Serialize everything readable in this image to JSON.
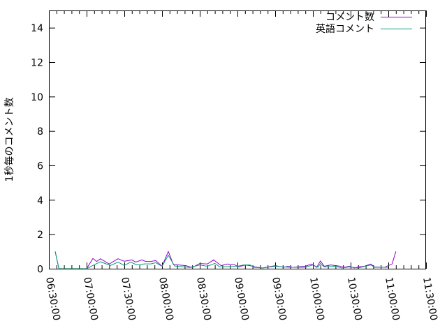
{
  "chart_data": {
    "type": "line",
    "title": "",
    "xlabel": "",
    "ylabel": "1秒毎のコメント数",
    "xlim": [
      "06:30:00",
      "11:30:00"
    ],
    "ylim": [
      0,
      15
    ],
    "xticks": [
      "06:30:00",
      "07:00:00",
      "07:30:00",
      "08:00:00",
      "08:30:00",
      "09:00:00",
      "09:30:00",
      "10:00:00",
      "10:30:00",
      "11:00:00",
      "11:30:00"
    ],
    "yticks": [
      0,
      2,
      4,
      6,
      8,
      10,
      12,
      14
    ],
    "legend_position": "top-right",
    "series": [
      {
        "name": "コメント数",
        "color": "#9400d3",
        "points": [
          [
            "06:35",
            1.0
          ],
          [
            "06:38",
            0
          ],
          [
            "07:00",
            0
          ],
          [
            "07:05",
            0.59
          ],
          [
            "07:08",
            0.42
          ],
          [
            "07:11",
            0.58
          ],
          [
            "07:18",
            0.27
          ],
          [
            "07:25",
            0.58
          ],
          [
            "07:30",
            0.43
          ],
          [
            "07:36",
            0.51
          ],
          [
            "07:39",
            0.38
          ],
          [
            "07:44",
            0.51
          ],
          [
            "07:47",
            0.42
          ],
          [
            "07:51",
            0.42
          ],
          [
            "07:55",
            0.47
          ],
          [
            "08:00",
            0.14
          ],
          [
            "08:05",
            1.0
          ],
          [
            "08:09",
            0.24
          ],
          [
            "08:13",
            0.22
          ],
          [
            "08:19",
            0.18
          ],
          [
            "08:24",
            0.07
          ],
          [
            "08:30",
            0.3
          ],
          [
            "08:36",
            0.27
          ],
          [
            "08:41",
            0.51
          ],
          [
            "08:47",
            0.18
          ],
          [
            "08:52",
            0.27
          ],
          [
            "08:58",
            0.22
          ],
          [
            "09:01",
            0.1
          ],
          [
            "09:06",
            0.22
          ],
          [
            "09:10",
            0.18
          ],
          [
            "09:14",
            0.1
          ],
          [
            "09:20",
            0.04
          ],
          [
            "09:30",
            0.18
          ],
          [
            "09:37",
            0.08
          ],
          [
            "09:40",
            0.14
          ],
          [
            "09:44",
            0.08
          ],
          [
            "09:54",
            0.14
          ],
          [
            "09:59",
            0.27
          ],
          [
            "10:03",
            0.08
          ],
          [
            "10:06",
            0.45
          ],
          [
            "10:09",
            0.14
          ],
          [
            "10:14",
            0.22
          ],
          [
            "10:21",
            0.15
          ],
          [
            "10:25",
            0.08
          ],
          [
            "10:29",
            0.14
          ],
          [
            "10:33",
            0.04
          ],
          [
            "10:36",
            0.1
          ],
          [
            "10:41",
            0.14
          ],
          [
            "10:46",
            0.27
          ],
          [
            "10:49",
            0.1
          ],
          [
            "10:57",
            0.08
          ],
          [
            "11:00",
            0.18
          ],
          [
            "11:03",
            0.27
          ],
          [
            "11:06",
            1.0
          ]
        ]
      },
      {
        "name": "英語コメント",
        "color": "#009e73",
        "points": [
          [
            "06:35",
            1.0
          ],
          [
            "06:38",
            0
          ],
          [
            "07:00",
            0
          ],
          [
            "07:05",
            0.19
          ],
          [
            "07:11",
            0.4
          ],
          [
            "07:19",
            0.19
          ],
          [
            "07:25",
            0.38
          ],
          [
            "07:30",
            0.19
          ],
          [
            "07:35",
            0.38
          ],
          [
            "07:40",
            0.22
          ],
          [
            "07:46",
            0.28
          ],
          [
            "07:51",
            0.28
          ],
          [
            "07:55",
            0.35
          ],
          [
            "08:00",
            0.14
          ],
          [
            "08:05",
            0.78
          ],
          [
            "08:10",
            0.16
          ],
          [
            "08:22",
            0.07
          ],
          [
            "08:30",
            0.22
          ],
          [
            "08:36",
            0.14
          ],
          [
            "08:42",
            0.31
          ],
          [
            "08:46",
            0.1
          ],
          [
            "09:00",
            0.14
          ],
          [
            "09:05",
            0.22
          ],
          [
            "09:10",
            0.22
          ],
          [
            "09:13",
            0.08
          ],
          [
            "09:20",
            0.04
          ],
          [
            "09:30",
            0.14
          ],
          [
            "09:41",
            0.08
          ],
          [
            "09:54",
            0.08
          ],
          [
            "10:00",
            0.22
          ],
          [
            "10:04",
            0.08
          ],
          [
            "10:06",
            0.31
          ],
          [
            "10:09",
            0.1
          ],
          [
            "10:18",
            0.14
          ],
          [
            "10:23",
            0.04
          ],
          [
            "10:29",
            0.1
          ],
          [
            "10:36",
            0.04
          ],
          [
            "10:46",
            0.22
          ],
          [
            "10:49",
            0.08
          ],
          [
            "11:00",
            0.08
          ]
        ]
      }
    ]
  }
}
